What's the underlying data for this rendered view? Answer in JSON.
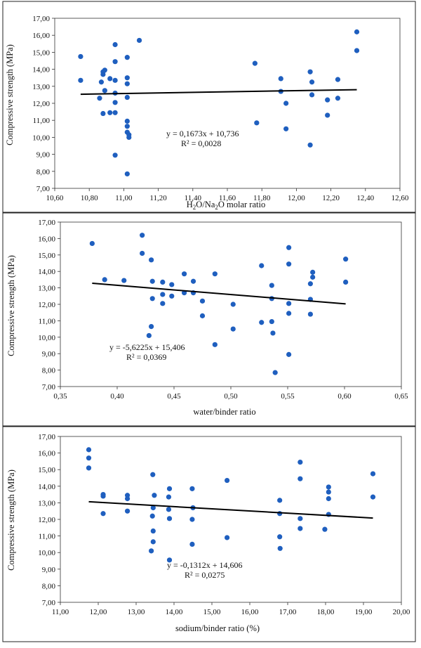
{
  "chart_data": [
    {
      "type": "scatter",
      "title": "",
      "xlabel": "H2O/Na2O molar ratio",
      "xlabel_parts": {
        "a": "H",
        "sub1": "2",
        "b": "O/Na",
        "sub2": "2",
        "c": "O molar ratio"
      },
      "ylabel": "Compressive strength (MPa)",
      "xlim": [
        10.6,
        12.6
      ],
      "ylim": [
        7.0,
        17.0
      ],
      "xticks": [
        "10,60",
        "10,80",
        "11,00",
        "11,20",
        "11,40",
        "11,60",
        "11,80",
        "12,00",
        "12,20",
        "12,40",
        "12,60"
      ],
      "yticks": [
        "7,00",
        "8,00",
        "9,00",
        "10,00",
        "11,00",
        "12,00",
        "13,00",
        "14,00",
        "15,00",
        "16,00",
        "17,00"
      ],
      "equation": "y = 0,1673x + 10,736",
      "r2_label": "R² = 0,0028",
      "trendline": {
        "slope": 0.1673,
        "intercept": 10.736,
        "x_range": [
          10.75,
          12.35
        ]
      },
      "points": [
        [
          10.75,
          14.75
        ],
        [
          10.75,
          13.35
        ],
        [
          10.86,
          12.3
        ],
        [
          10.87,
          13.25
        ],
        [
          10.88,
          13.7
        ],
        [
          10.88,
          13.85
        ],
        [
          10.88,
          11.4
        ],
        [
          10.89,
          13.95
        ],
        [
          10.89,
          12.75
        ],
        [
          10.92,
          13.45
        ],
        [
          10.92,
          11.45
        ],
        [
          10.95,
          15.45
        ],
        [
          10.95,
          14.45
        ],
        [
          10.95,
          13.35
        ],
        [
          10.95,
          12.6
        ],
        [
          10.95,
          12.05
        ],
        [
          10.95,
          11.45
        ],
        [
          10.95,
          8.95
        ],
        [
          11.02,
          14.7
        ],
        [
          11.02,
          13.5
        ],
        [
          11.02,
          13.15
        ],
        [
          11.02,
          12.35
        ],
        [
          11.02,
          10.95
        ],
        [
          11.02,
          10.65
        ],
        [
          11.02,
          10.3
        ],
        [
          11.03,
          10.15
        ],
        [
          11.03,
          10.0
        ],
        [
          11.02,
          7.85
        ],
        [
          11.09,
          15.7
        ],
        [
          11.76,
          14.35
        ],
        [
          11.77,
          10.85
        ],
        [
          11.91,
          13.45
        ],
        [
          11.91,
          12.7
        ],
        [
          11.94,
          12.0
        ],
        [
          11.94,
          10.5
        ],
        [
          12.08,
          13.85
        ],
        [
          12.09,
          13.25
        ],
        [
          12.09,
          12.5
        ],
        [
          12.08,
          9.55
        ],
        [
          12.18,
          12.2
        ],
        [
          12.18,
          11.3
        ],
        [
          12.24,
          13.4
        ],
        [
          12.24,
          12.3
        ],
        [
          12.35,
          16.2
        ],
        [
          12.35,
          15.1
        ]
      ]
    },
    {
      "type": "scatter",
      "title": "",
      "xlabel": "water/binder ratio",
      "ylabel": "Compressive strength (MPa)",
      "xlim": [
        0.35,
        0.65
      ],
      "ylim": [
        7.0,
        17.0
      ],
      "xticks": [
        "0,35",
        "0,40",
        "0,45",
        "0,50",
        "0,55",
        "0,60",
        "0,65"
      ],
      "yticks": [
        "7,00",
        "8,00",
        "9,00",
        "10,00",
        "11,00",
        "12,00",
        "13,00",
        "14,00",
        "15,00",
        "16,00",
        "17,00"
      ],
      "equation": "y = -5,6225x + 15,406",
      "r2_label": "R² = 0,0369",
      "trendline": {
        "slope": -5.6225,
        "intercept": 15.406,
        "x_range": [
          0.378,
          0.601
        ]
      },
      "points": [
        [
          0.378,
          15.7
        ],
        [
          0.389,
          13.5
        ],
        [
          0.406,
          13.45
        ],
        [
          0.422,
          16.2
        ],
        [
          0.422,
          15.1
        ],
        [
          0.43,
          14.7
        ],
        [
          0.431,
          13.4
        ],
        [
          0.43,
          10.65
        ],
        [
          0.428,
          10.1
        ],
        [
          0.431,
          12.35
        ],
        [
          0.44,
          13.35
        ],
        [
          0.44,
          12.6
        ],
        [
          0.44,
          12.05
        ],
        [
          0.448,
          13.2
        ],
        [
          0.448,
          12.5
        ],
        [
          0.459,
          13.85
        ],
        [
          0.459,
          12.7
        ],
        [
          0.467,
          13.4
        ],
        [
          0.467,
          12.7
        ],
        [
          0.475,
          12.2
        ],
        [
          0.475,
          11.3
        ],
        [
          0.486,
          13.85
        ],
        [
          0.486,
          9.55
        ],
        [
          0.502,
          12.0
        ],
        [
          0.502,
          10.5
        ],
        [
          0.527,
          14.35
        ],
        [
          0.527,
          10.9
        ],
        [
          0.536,
          13.15
        ],
        [
          0.536,
          12.35
        ],
        [
          0.536,
          10.95
        ],
        [
          0.537,
          10.25
        ],
        [
          0.539,
          7.85
        ],
        [
          0.551,
          15.45
        ],
        [
          0.551,
          14.45
        ],
        [
          0.551,
          12.05
        ],
        [
          0.551,
          11.45
        ],
        [
          0.551,
          8.95
        ],
        [
          0.572,
          13.95
        ],
        [
          0.572,
          13.65
        ],
        [
          0.57,
          13.25
        ],
        [
          0.57,
          12.3
        ],
        [
          0.57,
          11.4
        ],
        [
          0.601,
          14.75
        ],
        [
          0.601,
          13.35
        ]
      ]
    },
    {
      "type": "scatter",
      "title": "",
      "xlabel": "sodium/binder ratio (%)",
      "ylabel": "Compressive strength (MPa)",
      "xlim": [
        11.0,
        20.0
      ],
      "ylim": [
        7.0,
        17.0
      ],
      "xticks": [
        "11,00",
        "12,00",
        "13,00",
        "14,00",
        "15,00",
        "16,00",
        "17,00",
        "18,00",
        "19,00",
        "20,00"
      ],
      "yticks": [
        "7,00",
        "8,00",
        "9,00",
        "10,00",
        "11,00",
        "12,00",
        "13,00",
        "14,00",
        "15,00",
        "16,00",
        "17,00"
      ],
      "equation": "y = -0,1312x + 14,606",
      "r2_label": "R² = 0,0275",
      "trendline": {
        "slope": -0.1312,
        "intercept": 14.606,
        "x_range": [
          11.75,
          19.25
        ]
      },
      "points": [
        [
          11.75,
          16.2
        ],
        [
          11.75,
          15.7
        ],
        [
          11.75,
          15.1
        ],
        [
          12.13,
          13.5
        ],
        [
          12.13,
          13.4
        ],
        [
          12.13,
          12.35
        ],
        [
          12.77,
          13.45
        ],
        [
          12.77,
          13.25
        ],
        [
          12.77,
          12.5
        ],
        [
          13.44,
          14.7
        ],
        [
          13.48,
          13.45
        ],
        [
          13.45,
          12.7
        ],
        [
          13.43,
          12.2
        ],
        [
          13.45,
          11.3
        ],
        [
          13.45,
          10.65
        ],
        [
          13.4,
          10.1
        ],
        [
          13.88,
          13.85
        ],
        [
          13.86,
          13.35
        ],
        [
          13.86,
          12.6
        ],
        [
          13.88,
          12.05
        ],
        [
          13.88,
          9.55
        ],
        [
          14.48,
          13.85
        ],
        [
          14.5,
          12.7
        ],
        [
          14.48,
          12.0
        ],
        [
          14.48,
          10.5
        ],
        [
          15.4,
          14.35
        ],
        [
          15.4,
          10.9
        ],
        [
          16.79,
          13.15
        ],
        [
          16.79,
          12.35
        ],
        [
          16.79,
          10.95
        ],
        [
          16.8,
          10.25
        ],
        [
          17.33,
          15.45
        ],
        [
          17.33,
          14.45
        ],
        [
          17.33,
          12.05
        ],
        [
          17.33,
          11.45
        ],
        [
          17.98,
          11.4
        ],
        [
          18.08,
          13.95
        ],
        [
          18.08,
          13.65
        ],
        [
          18.08,
          13.25
        ],
        [
          18.08,
          12.3
        ],
        [
          19.25,
          14.75
        ],
        [
          19.25,
          13.35
        ]
      ]
    }
  ]
}
